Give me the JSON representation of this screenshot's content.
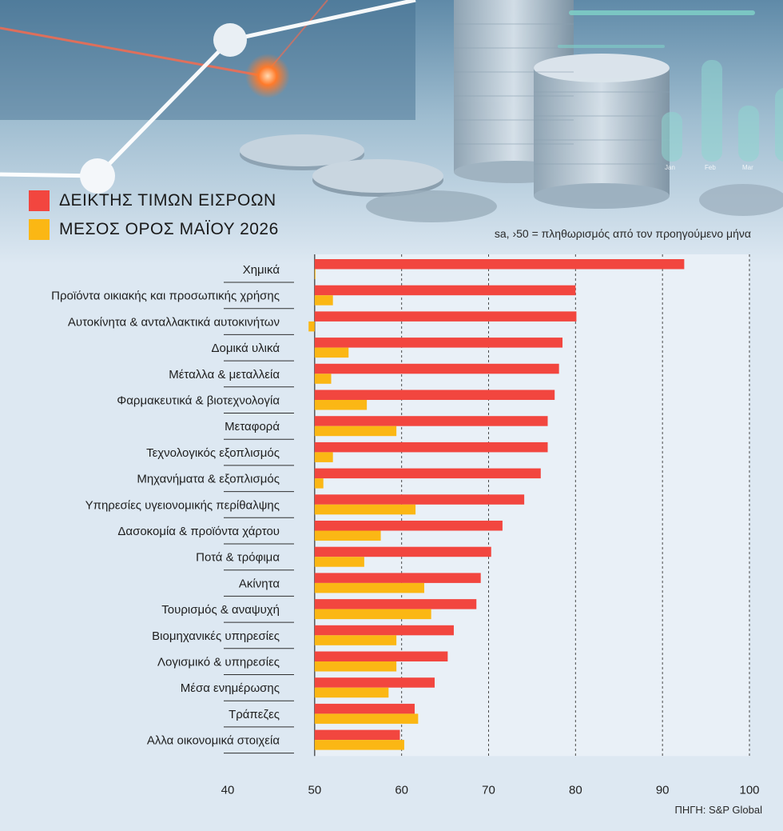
{
  "legend": {
    "items": [
      {
        "label": "ΔΕΙΚΤΗΣ ΤΙΜΩΝ ΕΙΣΡΟΩΝ",
        "color": "#f2463f"
      },
      {
        "label": "ΜΕΣΟΣ ΟΡΟΣ ΜΑΪΟΥ 2026",
        "color": "#fbb714"
      }
    ]
  },
  "note": "sa, ›50 = πληθωρισμός από τον προηγούμενο μήνα",
  "source": "ΠΗΓΗ: S&P Global",
  "hero": {
    "months": [
      "Jan",
      "Feb",
      "Mar"
    ]
  },
  "chart_data": {
    "type": "bar",
    "orientation": "horizontal",
    "categories": [
      "Χημικά",
      "Προϊόντα οικιακής και προσωπικής χρήσης",
      "Αυτοκίνητα & ανταλλακτικά αυτοκινήτων",
      "Δομικά υλικά",
      "Μέταλλα & μεταλλεία",
      "Φαρμακευτικά & βιοτεχνολογία",
      "Μεταφορά",
      "Τεχνολογικός εξοπλισμός",
      "Μηχανήματα & εξοπλισμός",
      "Υπηρεσίες υγειονομικής περίθαλψης",
      "Δασοκομία & προϊόντα χάρτου",
      "Ποτά & τρόφιμα",
      "Ακίνητα",
      "Τουρισμός & αναψυχή",
      "Βιομηχανικές υπηρεσίες",
      "Λογισμικό & υπηρεσίες",
      "Μέσα ενημέρωσης",
      "Τράπεζες",
      "Αλλα οικονομικά στοιχεία"
    ],
    "series": [
      {
        "name": "ΔΕΙΚΤΗΣ ΤΙΜΩΝ ΕΙΣΡΟΩΝ",
        "color": "#f2463f",
        "values": [
          92.5,
          80.0,
          80.1,
          78.5,
          78.1,
          77.6,
          76.8,
          76.8,
          76.0,
          74.1,
          71.6,
          70.3,
          69.1,
          68.6,
          66.0,
          65.3,
          63.8,
          61.5,
          59.8
        ]
      },
      {
        "name": "ΜΕΣΟΣ ΟΡΟΣ ΜΑΪΟΥ 2026",
        "color": "#fbb714",
        "values": [
          50.0,
          52.1,
          49.3,
          53.9,
          51.9,
          56.0,
          59.4,
          52.1,
          51.0,
          61.6,
          57.6,
          55.7,
          62.6,
          63.4,
          59.4,
          59.4,
          58.5,
          61.9,
          60.3
        ]
      }
    ],
    "xlim": [
      40,
      100
    ],
    "xticks": [
      40,
      50,
      60,
      70,
      80,
      90,
      100
    ],
    "grid": true,
    "legend_position": "top-left"
  }
}
